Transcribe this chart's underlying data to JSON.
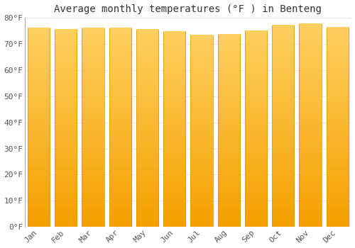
{
  "title": "Average monthly temperatures (°F ) in Benteng",
  "months": [
    "Jan",
    "Feb",
    "Mar",
    "Apr",
    "May",
    "Jun",
    "Jul",
    "Aug",
    "Sep",
    "Oct",
    "Nov",
    "Dec"
  ],
  "values": [
    76.0,
    75.5,
    76.0,
    76.0,
    75.5,
    74.5,
    73.2,
    73.5,
    75.0,
    77.0,
    77.5,
    76.2
  ],
  "bar_color_light": "#FFD060",
  "bar_color_dark": "#F5A000",
  "ylim": [
    0,
    80
  ],
  "yticks": [
    0,
    10,
    20,
    30,
    40,
    50,
    60,
    70,
    80
  ],
  "ytick_labels": [
    "0°F",
    "10°F",
    "20°F",
    "30°F",
    "40°F",
    "50°F",
    "60°F",
    "70°F",
    "80°F"
  ],
  "background_color": "#ffffff",
  "plot_bg_color": "#ffffff",
  "grid_color": "#e8e8e8",
  "title_fontsize": 10,
  "tick_fontsize": 8
}
